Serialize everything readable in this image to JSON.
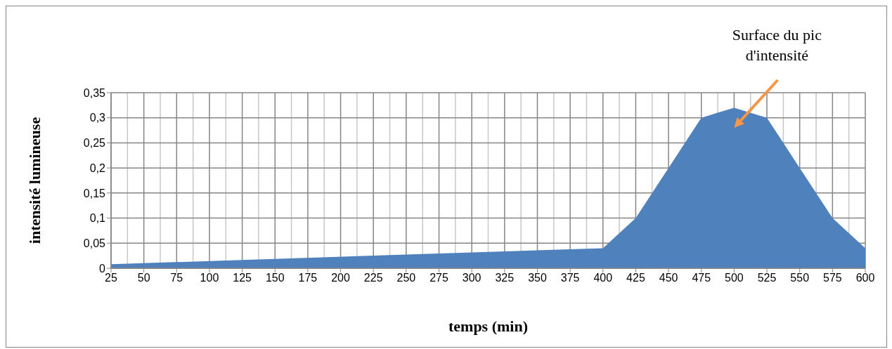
{
  "chart_data": {
    "type": "area",
    "xlabel": "temps (min)",
    "ylabel": "intensité lumineuse",
    "x": [
      25,
      400,
      425,
      450,
      475,
      500,
      525,
      550,
      575,
      600
    ],
    "series": [
      {
        "color": "#4f81bd",
        "values": [
          0.008,
          0.04,
          0.1,
          0.2,
          0.3,
          0.32,
          0.3,
          0.2,
          0.1,
          0.04
        ]
      }
    ],
    "xlim": [
      25,
      600
    ],
    "xticks": [
      25,
      50,
      75,
      100,
      125,
      150,
      175,
      200,
      225,
      250,
      275,
      300,
      325,
      350,
      375,
      400,
      425,
      450,
      475,
      500,
      525,
      550,
      575,
      600
    ],
    "ylim": [
      0,
      0.35
    ],
    "yticks": [
      {
        "value": 0,
        "label": "0"
      },
      {
        "value": 0.05,
        "label": "0,05"
      },
      {
        "value": 0.1,
        "label": "0,1"
      },
      {
        "value": 0.15,
        "label": "0,15"
      },
      {
        "value": 0.2,
        "label": "0,2"
      },
      {
        "value": 0.25,
        "label": "0,25"
      },
      {
        "value": 0.3,
        "label": "0,3"
      },
      {
        "value": 0.35,
        "label": "0,35"
      }
    ],
    "grid": true,
    "marker": "none",
    "annotations": [
      "Surface du pic d'intensité"
    ]
  }
}
